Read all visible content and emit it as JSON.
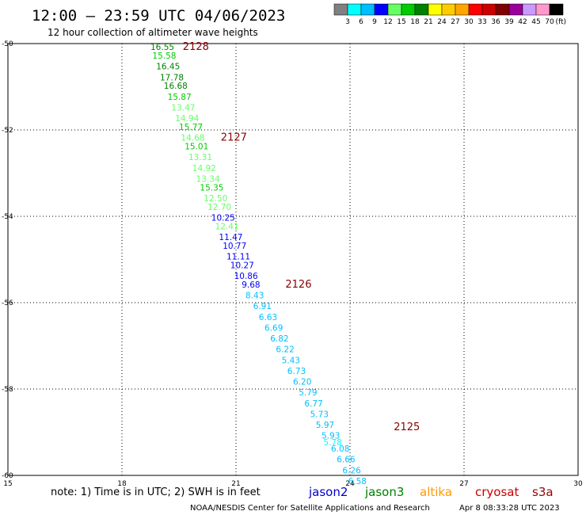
{
  "header": {
    "title": "12:00 – 23:59 UTC 04/06/2023",
    "subtitle": "12 hour collection of altimeter wave heights"
  },
  "color_scale": {
    "colors": [
      "#808080",
      "#00ffff",
      "#00bfff",
      "#0000ff",
      "#66ff66",
      "#00cc00",
      "#008000",
      "#ffff00",
      "#ffcc00",
      "#ffa500",
      "#ff0000",
      "#cc0000",
      "#800000",
      "#990099",
      "#cc99ff",
      "#ff99cc",
      "#000000"
    ],
    "labels": [
      "3",
      "6",
      "9",
      "12",
      "15",
      "18",
      "21",
      "24",
      "27",
      "30",
      "33",
      "36",
      "39",
      "42",
      "45",
      "70"
    ],
    "unit": "(ft)"
  },
  "axes": {
    "x_ticks": [
      "15",
      "18",
      "21",
      "24",
      "27",
      "30"
    ],
    "y_ticks": [
      "-50",
      "-52",
      "-54",
      "-56",
      "-58",
      "-60"
    ]
  },
  "passes": [
    {
      "label": "2128",
      "lon": 19.6,
      "lat": -50.15
    },
    {
      "label": "2127",
      "lon": 20.6,
      "lat": -52.25
    },
    {
      "label": "2126",
      "lon": 22.3,
      "lat": -55.65
    },
    {
      "label": "2125",
      "lon": 25.15,
      "lat": -58.95
    }
  ],
  "chart_data": {
    "type": "scatter",
    "xlim": [
      15,
      30
    ],
    "ylim": [
      -60,
      -50
    ],
    "grid": true,
    "points": [
      {
        "lon": 18.75,
        "lat": -50.15,
        "v": "16.55",
        "c": "#008000"
      },
      {
        "lon": 18.8,
        "lat": -50.35,
        "v": "15.58",
        "c": "#00cc00"
      },
      {
        "lon": 18.9,
        "lat": -50.6,
        "v": "16.45",
        "c": "#008000"
      },
      {
        "lon": 19.0,
        "lat": -50.85,
        "v": "17.78",
        "c": "#008000"
      },
      {
        "lon": 19.1,
        "lat": -51.05,
        "v": "16.68",
        "c": "#008000"
      },
      {
        "lon": 19.2,
        "lat": -51.3,
        "v": "15.87",
        "c": "#00cc00"
      },
      {
        "lon": 19.3,
        "lat": -51.55,
        "v": "13.47",
        "c": "#66ff66"
      },
      {
        "lon": 19.4,
        "lat": -51.8,
        "v": "14.94",
        "c": "#66ff66"
      },
      {
        "lon": 19.5,
        "lat": -52.0,
        "v": "15.77",
        "c": "#00cc00"
      },
      {
        "lon": 19.55,
        "lat": -52.25,
        "v": "14.68",
        "c": "#66ff66"
      },
      {
        "lon": 19.65,
        "lat": -52.45,
        "v": "15.01",
        "c": "#00cc00"
      },
      {
        "lon": 19.75,
        "lat": -52.7,
        "v": "13.31",
        "c": "#66ff66"
      },
      {
        "lon": 19.85,
        "lat": -52.95,
        "v": "14.92",
        "c": "#66ff66"
      },
      {
        "lon": 19.95,
        "lat": -53.2,
        "v": "13.34",
        "c": "#66ff66"
      },
      {
        "lon": 20.05,
        "lat": -53.4,
        "v": "15.35",
        "c": "#00cc00"
      },
      {
        "lon": 20.15,
        "lat": -53.65,
        "v": "12.50",
        "c": "#66ff66"
      },
      {
        "lon": 20.25,
        "lat": -53.85,
        "v": "12.70",
        "c": "#66ff66"
      },
      {
        "lon": 20.35,
        "lat": -54.1,
        "v": "10.25",
        "c": "#0000ff"
      },
      {
        "lon": 20.45,
        "lat": -54.3,
        "v": "12.41",
        "c": "#66ff66"
      },
      {
        "lon": 20.55,
        "lat": -54.55,
        "v": "11.47",
        "c": "#0000ff"
      },
      {
        "lon": 20.65,
        "lat": -54.75,
        "v": "10.77",
        "c": "#0000ff"
      },
      {
        "lon": 20.75,
        "lat": -55.0,
        "v": "11.11",
        "c": "#0000ff"
      },
      {
        "lon": 20.85,
        "lat": -55.2,
        "v": "10.27",
        "c": "#0000ff"
      },
      {
        "lon": 20.95,
        "lat": -55.45,
        "v": "10.86",
        "c": "#0000ff"
      },
      {
        "lon": 21.15,
        "lat": -55.65,
        "v": "9.68",
        "c": "#0000ff"
      },
      {
        "lon": 21.25,
        "lat": -55.9,
        "v": "8.43",
        "c": "#00bfff"
      },
      {
        "lon": 21.45,
        "lat": -56.15,
        "v": "6.91",
        "c": "#00bfff"
      },
      {
        "lon": 21.6,
        "lat": -56.4,
        "v": "6.63",
        "c": "#00bfff"
      },
      {
        "lon": 21.75,
        "lat": -56.65,
        "v": "6.69",
        "c": "#00bfff"
      },
      {
        "lon": 21.9,
        "lat": -56.9,
        "v": "6.82",
        "c": "#00bfff"
      },
      {
        "lon": 22.05,
        "lat": -57.15,
        "v": "6.22",
        "c": "#00bfff"
      },
      {
        "lon": 22.2,
        "lat": -57.4,
        "v": "5.43",
        "c": "#00bfff"
      },
      {
        "lon": 22.35,
        "lat": -57.65,
        "v": "6.73",
        "c": "#00bfff"
      },
      {
        "lon": 22.5,
        "lat": -57.9,
        "v": "6.20",
        "c": "#00bfff"
      },
      {
        "lon": 22.65,
        "lat": -58.15,
        "v": "5.79",
        "c": "#00bfff"
      },
      {
        "lon": 22.8,
        "lat": -58.4,
        "v": "6.77",
        "c": "#00bfff"
      },
      {
        "lon": 22.95,
        "lat": -58.65,
        "v": "5.73",
        "c": "#00bfff"
      },
      {
        "lon": 23.1,
        "lat": -58.9,
        "v": "5.97",
        "c": "#00bfff"
      },
      {
        "lon": 23.25,
        "lat": -59.15,
        "v": "5.93",
        "c": "#00bfff"
      },
      {
        "lon": 23.3,
        "lat": -59.3,
        "v": "5.78",
        "c": "#00ffff"
      },
      {
        "lon": 23.5,
        "lat": -59.45,
        "v": "6.08",
        "c": "#00bfff"
      },
      {
        "lon": 23.65,
        "lat": -59.7,
        "v": "6.66",
        "c": "#00bfff"
      },
      {
        "lon": 23.8,
        "lat": -59.95,
        "v": "6.26",
        "c": "#00bfff"
      },
      {
        "lon": 23.95,
        "lat": -60.2,
        "v": "6.58",
        "c": "#00bfff"
      }
    ]
  },
  "note": "note:  1) Time is in UTC;  2) SWH is in feet",
  "satellites": [
    {
      "name": "jason2",
      "color": "#0000cc"
    },
    {
      "name": "jason3",
      "color": "#008000"
    },
    {
      "name": "altika",
      "color": "#ff9900"
    },
    {
      "name": "cryosat",
      "color": "#cc0000"
    },
    {
      "name": "s3a",
      "color": "#990000"
    }
  ],
  "footer": {
    "credit": "NOAA/NESDIS Center for Satellite Applications and Research",
    "timestamp": "Apr  8 08:33:28 UTC 2023"
  }
}
